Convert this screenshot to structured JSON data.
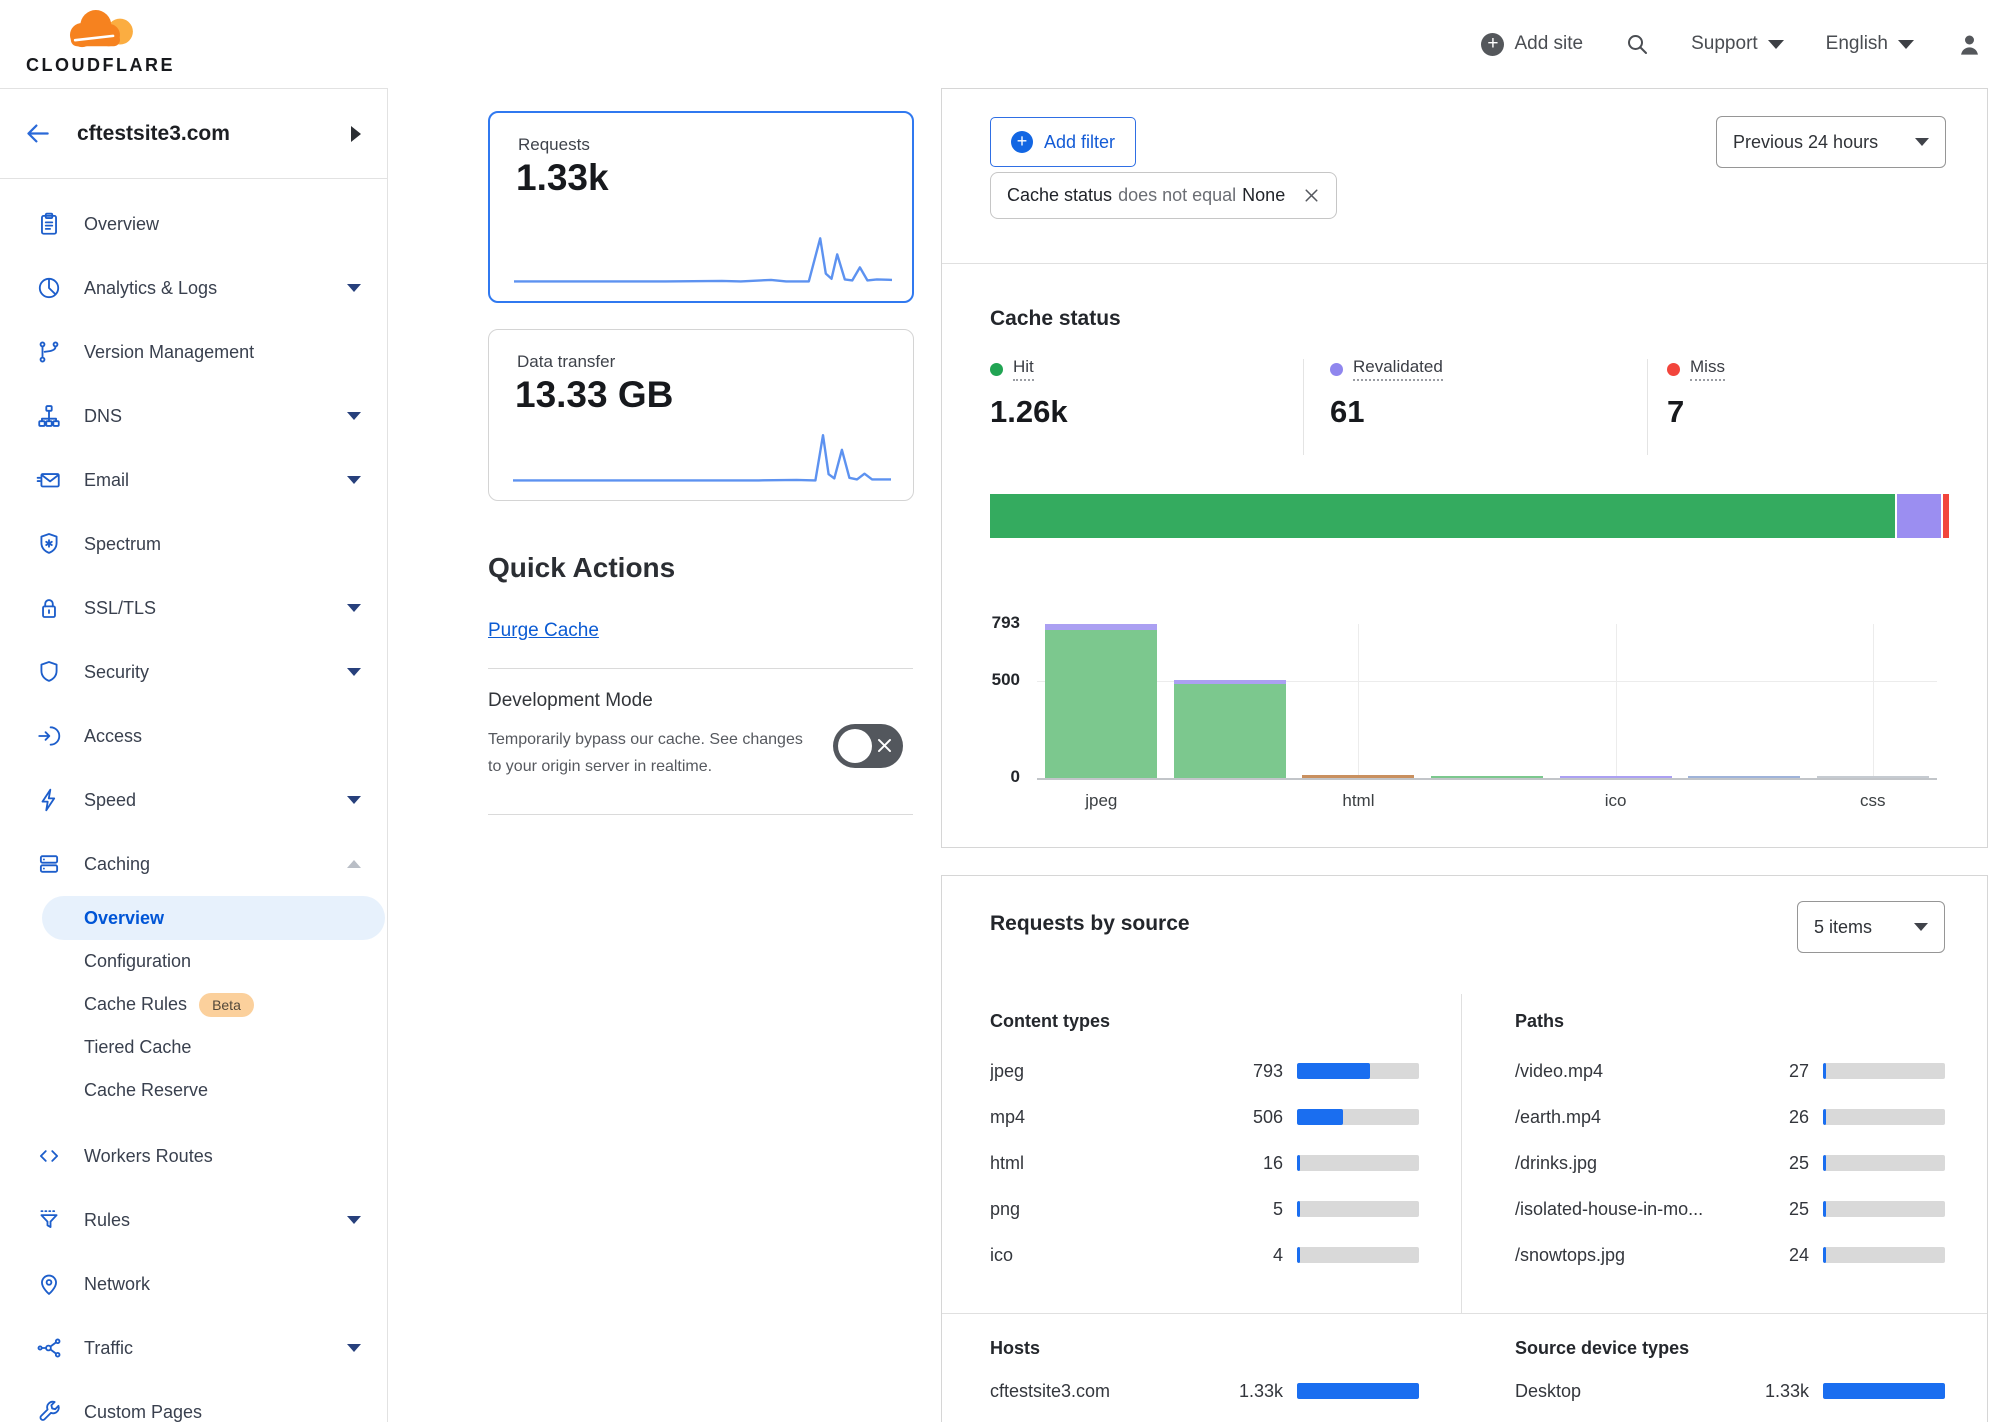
{
  "header": {
    "brand": "CLOUDFLARE",
    "add_site_label": "Add site",
    "support_label": "Support",
    "language_label": "English"
  },
  "sidebar": {
    "site_name": "cftestsite3.com",
    "items_top": [
      {
        "label": "Overview",
        "icon": "clipboard"
      },
      {
        "label": "Analytics & Logs",
        "icon": "pie",
        "caret": "down"
      },
      {
        "label": "Version Management",
        "icon": "branch"
      },
      {
        "label": "DNS",
        "icon": "dns",
        "caret": "down"
      },
      {
        "label": "Email",
        "icon": "email",
        "caret": "down"
      },
      {
        "label": "Spectrum",
        "icon": "spectrum"
      },
      {
        "label": "SSL/TLS",
        "icon": "lock",
        "caret": "down"
      },
      {
        "label": "Security",
        "icon": "shield",
        "caret": "down"
      },
      {
        "label": "Access",
        "icon": "access"
      },
      {
        "label": "Speed",
        "icon": "bolt",
        "caret": "down"
      },
      {
        "label": "Caching",
        "icon": "cache",
        "caret": "up"
      }
    ],
    "caching_submenu": [
      {
        "label": "Overview",
        "selected": true
      },
      {
        "label": "Configuration"
      },
      {
        "label": "Cache Rules",
        "badge": "Beta"
      },
      {
        "label": "Tiered Cache"
      },
      {
        "label": "Cache Reserve"
      }
    ],
    "items_bottom": [
      {
        "label": "Workers Routes",
        "icon": "code"
      },
      {
        "label": "Rules",
        "icon": "funnel",
        "caret": "down"
      },
      {
        "label": "Network",
        "icon": "pin"
      },
      {
        "label": "Traffic",
        "icon": "traffic",
        "caret": "down"
      },
      {
        "label": "Custom Pages",
        "icon": "wrench"
      }
    ]
  },
  "metric_cards": {
    "requests": {
      "label": "Requests",
      "value": "1.33k"
    },
    "data_transfer": {
      "label": "Data transfer",
      "value": "13.33 GB"
    }
  },
  "quick_actions": {
    "title": "Quick Actions",
    "purge_cache_label": "Purge Cache",
    "development_mode": {
      "title": "Development Mode",
      "description": "Temporarily bypass our cache. See changes to your origin server in realtime.",
      "state": "off"
    }
  },
  "filters": {
    "add_filter_label": "Add filter",
    "chip": {
      "field": "Cache status",
      "operator": "does not equal",
      "value": "None"
    },
    "time_range": "Previous 24 hours"
  },
  "cache_status": {
    "title": "Cache status",
    "stats": [
      {
        "label": "Hit",
        "value": "1.26k",
        "color": "#21a453"
      },
      {
        "label": "Revalidated",
        "value": "61",
        "color": "#8f86ee"
      },
      {
        "label": "Miss",
        "value": "7",
        "color": "#f2453c"
      }
    ]
  },
  "requests_by_source": {
    "title": "Requests by source",
    "items_count": "5 items",
    "content_types": {
      "title": "Content types",
      "rows": [
        {
          "label": "jpeg",
          "value": "793",
          "pct": 59.6
        },
        {
          "label": "mp4",
          "value": "506",
          "pct": 38
        },
        {
          "label": "html",
          "value": "16",
          "pct": 1.5
        },
        {
          "label": "png",
          "value": "5",
          "pct": 0.8
        },
        {
          "label": "ico",
          "value": "4",
          "pct": 0.7
        }
      ]
    },
    "paths": {
      "title": "Paths",
      "rows": [
        {
          "label": "/video.mp4",
          "value": "27",
          "pct": 2.5
        },
        {
          "label": "/earth.mp4",
          "value": "26",
          "pct": 2.4
        },
        {
          "label": "/drinks.jpg",
          "value": "25",
          "pct": 2.3
        },
        {
          "label": "/isolated-house-in-mo...",
          "value": "25",
          "pct": 2.3
        },
        {
          "label": "/snowtops.jpg",
          "value": "24",
          "pct": 2.2
        }
      ]
    },
    "hosts": {
      "title": "Hosts",
      "rows": [
        {
          "label": "cftestsite3.com",
          "value": "1.33k",
          "pct": 100
        }
      ]
    },
    "device_types": {
      "title": "Source device types",
      "rows": [
        {
          "label": "Desktop",
          "value": "1.33k",
          "pct": 100
        }
      ]
    }
  },
  "chart_data": [
    {
      "type": "stacked-bar",
      "title": "Cache status distribution",
      "segments": [
        {
          "name": "Hit",
          "value": 1260,
          "pct": 94.8,
          "color": "#34ab5f"
        },
        {
          "name": "Revalidated",
          "value": 61,
          "pct": 4.6,
          "color": "#9b8ef1"
        },
        {
          "name": "Miss",
          "value": 7,
          "pct": 0.6,
          "color": "#f2453c"
        }
      ]
    },
    {
      "type": "bar",
      "title": "Cache status by content type",
      "ylim": [
        0,
        793
      ],
      "yticks": [
        793,
        500,
        0
      ],
      "x_axis_labels": [
        "jpeg",
        "html",
        "ico",
        "css"
      ],
      "bars": [
        {
          "category": "jpeg",
          "total": 793,
          "label_shown": true,
          "segments": [
            {
              "color": "#7cc88e",
              "value": 760
            },
            {
              "color": "#aba0f2",
              "value": 33
            }
          ]
        },
        {
          "category": "mp4",
          "total": 506,
          "label_shown": false,
          "segments": [
            {
              "color": "#7cc88e",
              "value": 484
            },
            {
              "color": "#aba0f2",
              "value": 22
            }
          ]
        },
        {
          "category": "html",
          "total": 16,
          "label_shown": true,
          "segments": [
            {
              "color": "#c9905f",
              "value": 16
            }
          ]
        },
        {
          "category": "png",
          "total": 5,
          "label_shown": false,
          "segments": [
            {
              "color": "#7cc88e",
              "value": 5
            }
          ]
        },
        {
          "category": "ico",
          "total": 4,
          "label_shown": true,
          "segments": [
            {
              "color": "#aba0f2",
              "value": 4
            }
          ]
        },
        {
          "category": "",
          "total": 2,
          "label_shown": false,
          "segments": [
            {
              "color": "#9fb3d9",
              "value": 2
            }
          ]
        },
        {
          "category": "css",
          "total": 1,
          "label_shown": true,
          "segments": [
            {
              "color": "#c6cbd1",
              "value": 1
            }
          ]
        }
      ]
    },
    {
      "type": "line",
      "title": "Requests sparkline",
      "color": "#5d92f0",
      "points": [
        [
          0,
          0.03
        ],
        [
          40,
          0.03
        ],
        [
          55,
          0.04
        ],
        [
          60,
          0.03
        ],
        [
          68,
          0.06
        ],
        [
          72,
          0.03
        ],
        [
          78,
          0.03
        ],
        [
          81,
          0.86
        ],
        [
          82.5,
          0.18
        ],
        [
          84,
          0.08
        ],
        [
          85.5,
          0.55
        ],
        [
          87.5,
          0.07
        ],
        [
          89.5,
          0.05
        ],
        [
          91.5,
          0.3
        ],
        [
          93.5,
          0.05
        ],
        [
          96,
          0.07
        ],
        [
          100,
          0.06
        ]
      ]
    },
    {
      "type": "line",
      "title": "Data transfer sparkline",
      "color": "#5d92f0",
      "points": [
        [
          0,
          0.03
        ],
        [
          50,
          0.03
        ],
        [
          65,
          0.03
        ],
        [
          75,
          0.04
        ],
        [
          80,
          0.03
        ],
        [
          82,
          0.9
        ],
        [
          83.5,
          0.15
        ],
        [
          85,
          0.07
        ],
        [
          87,
          0.62
        ],
        [
          89,
          0.08
        ],
        [
          91,
          0.05
        ],
        [
          93,
          0.16
        ],
        [
          95,
          0.05
        ],
        [
          100,
          0.05
        ]
      ]
    }
  ]
}
